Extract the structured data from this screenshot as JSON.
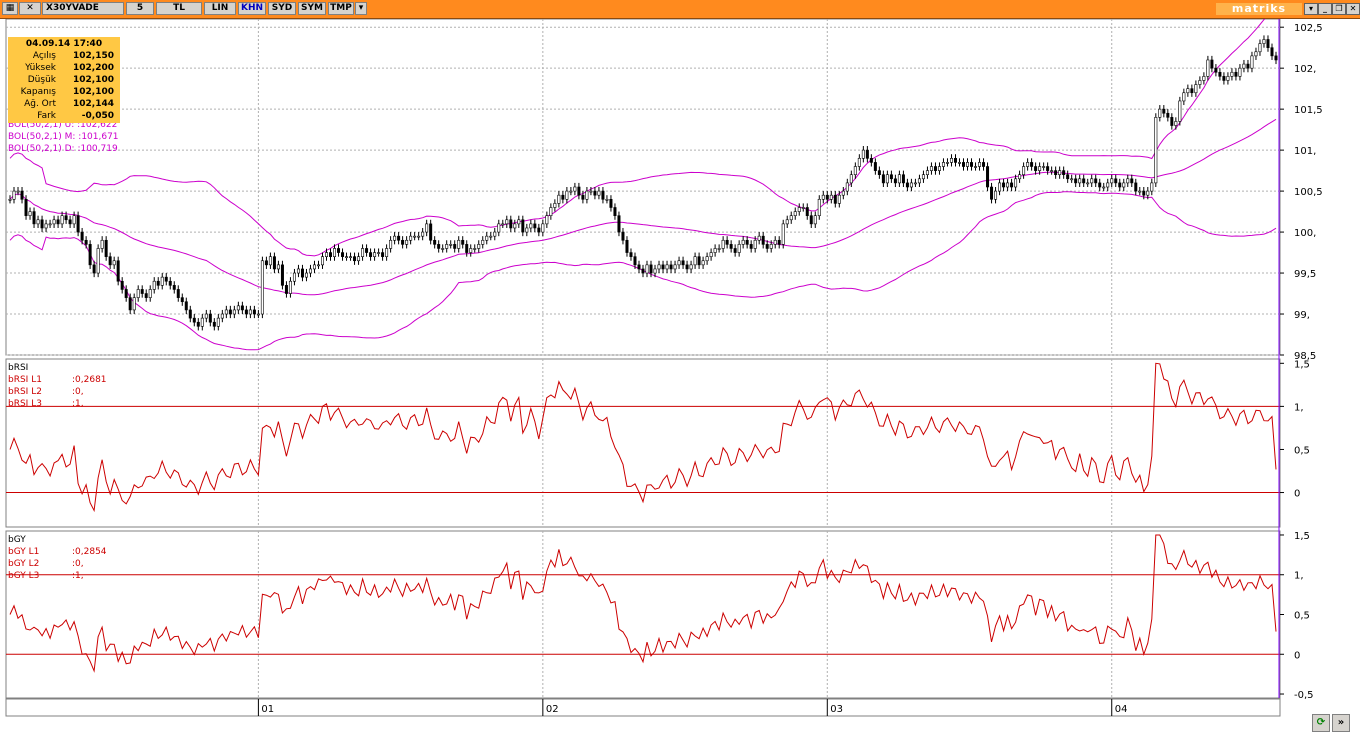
{
  "toolbar": {
    "symbol": "X30YVADE",
    "period": "5",
    "currency": "TL",
    "scale": "LIN",
    "buttons": [
      "KHN",
      "SYD",
      "SYM",
      "TMP"
    ],
    "brand": "matriks"
  },
  "info": {
    "datetime": "04.09.14 17:40",
    "rows": [
      {
        "label": "Açılış",
        "value": "102,150"
      },
      {
        "label": "Yüksek",
        "value": "102,200"
      },
      {
        "label": "Düşük",
        "value": "102,100"
      },
      {
        "label": "Kapanış",
        "value": "102,100"
      },
      {
        "label": "Ağ. Ort",
        "value": "102,144"
      },
      {
        "label": "Fark",
        "value": "-0,050"
      }
    ]
  },
  "colors": {
    "toolbar": "#ff8a1e",
    "candle": "#000000",
    "bollinger": "#cc00cc",
    "indicator": "#cc0000",
    "grid": "#b0b0b0"
  },
  "chart_data": [
    {
      "type": "candlestick",
      "panel": "price",
      "legend": [
        "BOL(50,2,1) U: :102,622",
        "BOL(50,2,1) M: :101,671",
        "BOL(50,2,1) D: :100,719"
      ],
      "ylim": [
        98.5,
        102.6
      ],
      "y_ticks": [
        "102,5",
        "102,",
        "101,5",
        "101,",
        "100,5",
        "100,",
        "99,5",
        "99,",
        "98,5"
      ],
      "x_ticks": [
        "01",
        "02",
        "03",
        "04"
      ],
      "x_tick_index": [
        62,
        133,
        204,
        275
      ],
      "close": [
        100.4,
        100.5,
        100.5,
        100.4,
        100.2,
        100.25,
        100.1,
        100.15,
        100.05,
        100.1,
        100.1,
        100.15,
        100.1,
        100.2,
        100.15,
        100.1,
        100.2,
        100.0,
        99.9,
        99.85,
        99.6,
        99.5,
        99.8,
        99.9,
        99.7,
        99.6,
        99.65,
        99.4,
        99.3,
        99.2,
        99.05,
        99.2,
        99.3,
        99.25,
        99.2,
        99.3,
        99.4,
        99.35,
        99.45,
        99.4,
        99.35,
        99.3,
        99.2,
        99.15,
        99.05,
        98.95,
        98.9,
        98.85,
        98.95,
        99.0,
        98.9,
        98.85,
        98.95,
        99.0,
        99.05,
        99.0,
        99.05,
        99.1,
        99.05,
        99.0,
        99.05,
        99.0,
        99.0,
        99.65,
        99.6,
        99.7,
        99.55,
        99.6,
        99.35,
        99.25,
        99.4,
        99.5,
        99.55,
        99.45,
        99.5,
        99.55,
        99.6,
        99.6,
        99.7,
        99.75,
        99.7,
        99.8,
        99.75,
        99.7,
        99.7,
        99.7,
        99.65,
        99.7,
        99.8,
        99.75,
        99.7,
        99.75,
        99.75,
        99.7,
        99.8,
        99.9,
        99.95,
        99.9,
        99.85,
        99.9,
        99.95,
        99.95,
        99.95,
        100.0,
        100.1,
        99.9,
        99.85,
        99.8,
        99.8,
        99.85,
        99.85,
        99.8,
        99.9,
        99.85,
        99.75,
        99.8,
        99.8,
        99.85,
        99.9,
        99.95,
        99.95,
        100.0,
        100.1,
        100.1,
        100.15,
        100.05,
        100.1,
        100.15,
        100.0,
        100.05,
        100.1,
        100.05,
        100.0,
        100.1,
        100.2,
        100.3,
        100.35,
        100.45,
        100.4,
        100.5,
        100.5,
        100.55,
        100.45,
        100.4,
        100.5,
        100.5,
        100.45,
        100.5,
        100.4,
        100.4,
        100.3,
        100.2,
        100.0,
        99.9,
        99.75,
        99.7,
        99.6,
        99.55,
        99.5,
        99.6,
        99.5,
        99.55,
        99.6,
        99.55,
        99.6,
        99.55,
        99.6,
        99.65,
        99.6,
        99.55,
        99.6,
        99.7,
        99.6,
        99.65,
        99.7,
        99.75,
        99.8,
        99.8,
        99.9,
        99.85,
        99.8,
        99.75,
        99.85,
        99.9,
        99.85,
        99.8,
        99.9,
        99.95,
        99.85,
        99.8,
        99.85,
        99.9,
        99.85,
        100.1,
        100.15,
        100.2,
        100.25,
        100.3,
        100.3,
        100.2,
        100.1,
        100.2,
        100.4,
        100.45,
        100.4,
        100.45,
        100.35,
        100.45,
        100.5,
        100.6,
        100.7,
        100.8,
        100.9,
        101.0,
        100.9,
        100.85,
        100.75,
        100.7,
        100.6,
        100.7,
        100.65,
        100.6,
        100.7,
        100.6,
        100.55,
        100.6,
        100.6,
        100.65,
        100.7,
        100.75,
        100.8,
        100.75,
        100.8,
        100.85,
        100.85,
        100.9,
        100.85,
        100.85,
        100.8,
        100.85,
        100.8,
        100.8,
        100.85,
        100.8,
        100.55,
        100.4,
        100.5,
        100.6,
        100.55,
        100.6,
        100.55,
        100.65,
        100.7,
        100.8,
        100.85,
        100.8,
        100.75,
        100.8,
        100.8,
        100.75,
        100.75,
        100.7,
        100.75,
        100.7,
        100.65,
        100.65,
        100.6,
        100.65,
        100.6,
        100.6,
        100.65,
        100.6,
        100.55,
        100.55,
        100.6,
        100.65,
        100.6,
        100.55,
        100.6,
        100.65,
        100.6,
        100.5,
        100.5,
        100.45,
        100.5,
        100.6,
        101.4,
        101.5,
        101.45,
        101.4,
        101.3,
        101.35,
        101.6,
        101.7,
        101.75,
        101.7,
        101.8,
        101.85,
        101.9,
        102.1,
        102.0,
        101.95,
        101.9,
        101.85,
        101.9,
        101.95,
        101.9,
        102.0,
        102.05,
        102.0,
        102.15,
        102.2,
        102.3,
        102.35,
        102.25,
        102.15,
        102.1
      ]
    },
    {
      "type": "line",
      "panel": "bRSI",
      "title": "bRSI",
      "series": [
        {
          "name": "bRSI L1",
          "value": "0,2681"
        },
        {
          "name": "bRSI L2",
          "value": "0,"
        },
        {
          "name": "bRSI L3",
          "value": "1,"
        }
      ],
      "ylim": [
        -0.4,
        1.55
      ],
      "y_ticks": [
        "1,5",
        "1,",
        "0,5",
        "0"
      ],
      "reference_lines": [
        0,
        1
      ]
    },
    {
      "type": "line",
      "panel": "bGY",
      "title": "bGY",
      "series": [
        {
          "name": "bGY L1",
          "value": "0,2854"
        },
        {
          "name": "bGY L2",
          "value": "0,"
        },
        {
          "name": "bGY L3",
          "value": "1,"
        }
      ],
      "ylim": [
        -0.55,
        1.55
      ],
      "y_ticks": [
        "1,5",
        "1,",
        "0,5",
        "0",
        "-0,5"
      ],
      "reference_lines": [
        0,
        1
      ]
    }
  ]
}
